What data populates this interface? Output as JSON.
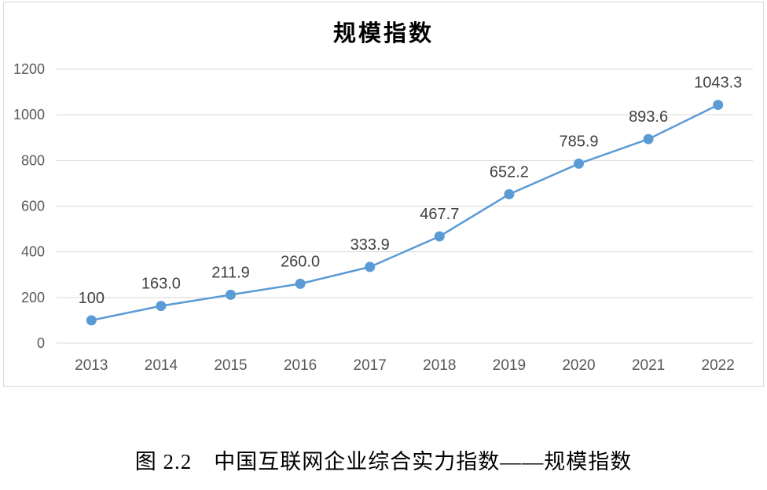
{
  "figure": {
    "caption": "图 2.2　中国互联网企业综合实力指数——规模指数"
  },
  "chart_data": {
    "type": "line",
    "title": "规模指数",
    "categories": [
      "2013",
      "2014",
      "2015",
      "2016",
      "2017",
      "2018",
      "2019",
      "2020",
      "2021",
      "2022"
    ],
    "series": [
      {
        "name": "规模指数",
        "values": [
          100,
          163.0,
          211.9,
          260.0,
          333.9,
          467.7,
          652.2,
          785.9,
          893.6,
          1043.3
        ],
        "labels": [
          "100",
          "163.0",
          "211.9",
          "260.0",
          "333.9",
          "467.7",
          "652.2",
          "785.9",
          "893.6",
          "1043.3"
        ]
      }
    ],
    "xlabel": "",
    "ylabel": "",
    "ylim": [
      0,
      1200
    ],
    "yticks": [
      0,
      200,
      400,
      600,
      800,
      1000,
      1200
    ],
    "grid": true,
    "legend_position": "none",
    "colors": {
      "line": "#5B9BD5",
      "marker": "#5B9BD5",
      "gridline": "#D9D9D9",
      "frame_border": "#D9D9D9",
      "tick_label": "#595959",
      "data_label": "#404040",
      "title": "#000000"
    }
  }
}
